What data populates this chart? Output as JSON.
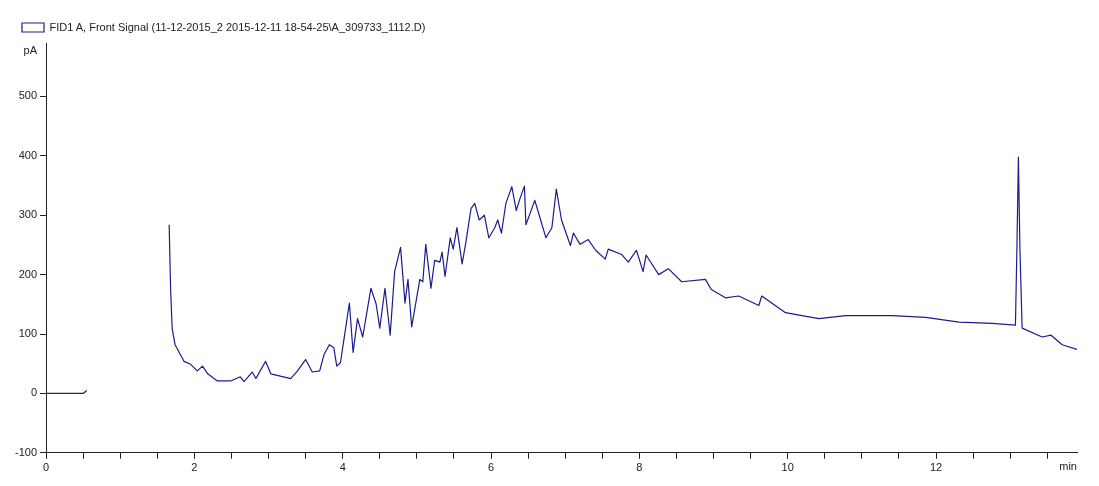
{
  "chart_data": {
    "type": "line",
    "xlabel": "min",
    "ylabel": "pA",
    "legend": "top left",
    "grid": false,
    "marker": "none",
    "line_style": "solid",
    "xlim": [
      0,
      13.9
    ],
    "ylim": [
      -100,
      590
    ],
    "xticks": [
      0,
      {
        "value": 0.5,
        "label": null
      },
      {
        "value": 1,
        "label": null
      },
      {
        "value": 1.5,
        "label": null
      },
      2,
      {
        "value": 2.5,
        "label": null
      },
      {
        "value": 3,
        "label": null
      },
      {
        "value": 3.5,
        "label": null
      },
      4,
      {
        "value": 4.5,
        "label": null
      },
      {
        "value": 5,
        "label": null
      },
      {
        "value": 5.5,
        "label": null
      },
      6,
      {
        "value": 6.5,
        "label": null
      },
      {
        "value": 7,
        "label": null
      },
      {
        "value": 7.5,
        "label": null
      },
      8,
      {
        "value": 8.5,
        "label": null
      },
      {
        "value": 9,
        "label": null
      },
      {
        "value": 9.5,
        "label": null
      },
      10,
      {
        "value": 10.5,
        "label": null
      },
      {
        "value": 11,
        "label": null
      },
      {
        "value": 11.5,
        "label": null
      },
      12,
      {
        "value": 12.5,
        "label": null
      },
      {
        "value": 13,
        "label": null
      },
      {
        "value": 13.5,
        "label": null
      }
    ],
    "yticks": [
      -100,
      0,
      100,
      200,
      300,
      400,
      500
    ],
    "series": [
      {
        "name": "FID1 A, Front Signal (11-12-2015_2 2015-12-11 18-54-25\\A_309733_1112.D)",
        "color": "#1c1c8f",
        "x": [
          0,
          0.5,
          0.55,
          0.57,
          1.1,
          1.63,
          1.66,
          1.68,
          1.7,
          1.74,
          1.86,
          1.95,
          2.04,
          2.11,
          2.18,
          2.31,
          2.49,
          2.62,
          2.67,
          2.78,
          2.83,
          2.96,
          3.03,
          3.3,
          3.39,
          3.5,
          3.59,
          3.69,
          3.75,
          3.82,
          3.88,
          3.92,
          3.97,
          4.09,
          4.14,
          4.2,
          4.27,
          4.38,
          4.45,
          4.5,
          4.57,
          4.64,
          4.7,
          4.78,
          4.84,
          4.88,
          4.93,
          5.04,
          5.08,
          5.12,
          5.19,
          5.24,
          5.31,
          5.34,
          5.38,
          5.45,
          5.49,
          5.54,
          5.61,
          5.66,
          5.73,
          5.78,
          5.84,
          5.91,
          5.97,
          6.05,
          6.09,
          6.14,
          6.2,
          6.28,
          6.34,
          6.39,
          6.45,
          6.47,
          6.59,
          6.65,
          6.74,
          6.82,
          6.88,
          6.95,
          7.07,
          7.11,
          7.2,
          7.31,
          7.41,
          7.54,
          7.58,
          7.76,
          7.85,
          7.96,
          8.05,
          8.09,
          8.26,
          8.39,
          8.57,
          8.89,
          8.97,
          9.16,
          9.34,
          9.61,
          9.65,
          9.97,
          10.19,
          10.42,
          10.78,
          11.41,
          11.86,
          12.31,
          12.76,
          13.07,
          13.09,
          13.11,
          13.13,
          13.16,
          13.43,
          13.55,
          13.7,
          13.9
        ],
        "values": [
          0,
          0,
          5,
          null,
          null,
          null,
          284,
          175,
          110,
          82,
          54,
          49,
          38,
          46,
          33,
          21,
          21,
          28,
          20,
          36,
          25,
          54,
          33,
          25,
          38,
          57,
          36,
          38,
          66,
          82,
          77,
          46,
          52,
          152,
          69,
          126,
          95,
          177,
          151,
          110,
          177,
          98,
          205,
          246,
          152,
          192,
          112,
          192,
          188,
          251,
          177,
          224,
          221,
          238,
          197,
          262,
          243,
          279,
          218,
          254,
          311,
          320,
          292,
          300,
          262,
          279,
          292,
          270,
          320,
          348,
          308,
          328,
          349,
          284,
          325,
          300,
          262,
          279,
          344,
          292,
          249,
          270,
          251,
          259,
          241,
          226,
          243,
          234,
          221,
          241,
          205,
          233,
          200,
          210,
          188,
          192,
          175,
          161,
          164,
          148,
          164,
          136,
          131,
          126,
          131,
          131,
          128,
          120,
          118,
          115,
          246,
          398,
          246,
          110,
          95,
          98,
          82,
          74
        ]
      }
    ]
  }
}
